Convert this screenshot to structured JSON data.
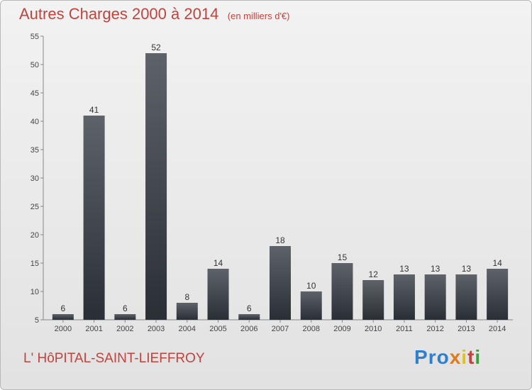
{
  "header": {
    "title": "Autres Charges 2000 à 2014",
    "unit": "(en milliers d'€)"
  },
  "footer": {
    "place": "L' HôPITAL-SAINT-LIEFFROY",
    "logo": "Proxiti"
  },
  "colors": {
    "bar_top": "#5e6269",
    "bar_bottom": "#2a2e35",
    "title": "#c0443e",
    "axis": "#888888",
    "grid": "#cfcfcf"
  },
  "chart_data": {
    "type": "bar",
    "title": "Autres Charges 2000 à 2014",
    "subtitle": "(en milliers d'€)",
    "categories": [
      "2000",
      "2001",
      "2002",
      "2003",
      "2004",
      "2005",
      "2006",
      "2007",
      "2008",
      "2009",
      "2010",
      "2011",
      "2012",
      "2013",
      "2014"
    ],
    "values": [
      6,
      41,
      6,
      52,
      8,
      14,
      6,
      18,
      10,
      15,
      12,
      13,
      13,
      13,
      14
    ],
    "ylim": [
      5,
      55
    ],
    "yticks": [
      5,
      10,
      15,
      20,
      25,
      30,
      35,
      40,
      45,
      50,
      55
    ],
    "grid": false,
    "legend": "none"
  }
}
